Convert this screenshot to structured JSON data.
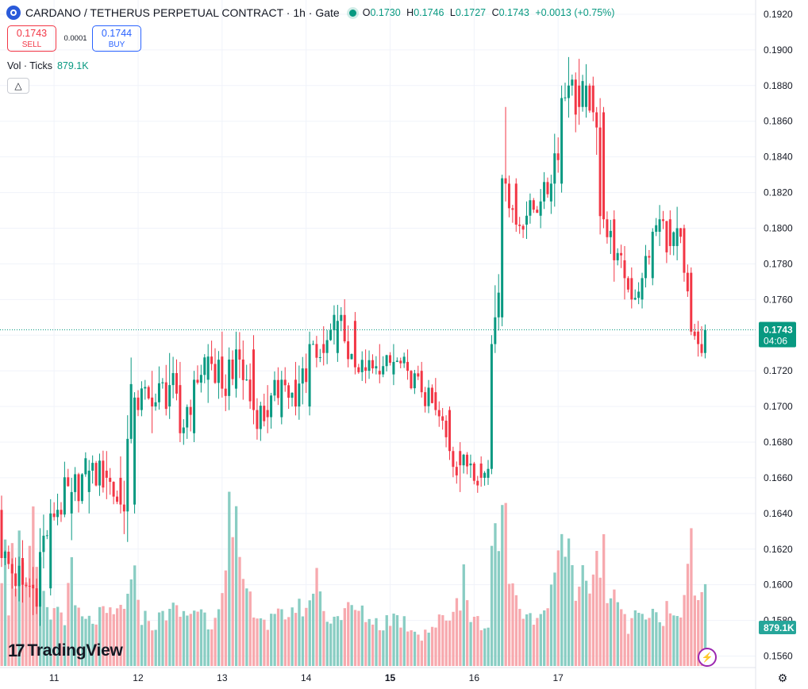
{
  "header": {
    "symbol": "CARDANO / TETHERUS PERPETUAL CONTRACT · 1h · Gate",
    "o_label": "O",
    "o": "0.1730",
    "h_label": "H",
    "h": "0.1746",
    "l_label": "L",
    "l": "0.1727",
    "c_label": "C",
    "c": "0.1743",
    "change": "+0.0013 (+0.75%)"
  },
  "trade": {
    "sell_price": "0.1743",
    "sell_label": "SELL",
    "spread": "0.0001",
    "buy_price": "0.1744",
    "buy_label": "BUY"
  },
  "volume_legend": {
    "label": "Vol · Ticks",
    "value": "879.1K"
  },
  "branding": {
    "text": "TradingView",
    "mark": "17"
  },
  "colors": {
    "up": "#089981",
    "down": "#f23645",
    "vol_up": "#89cdc3",
    "vol_down": "#f7a9ae",
    "grid": "#f0f3fa"
  },
  "chart_data": {
    "type": "candlestick",
    "interval": "1h",
    "price_axis": {
      "min": 0.1554,
      "max": 0.1928,
      "ticks": [
        "0.1920",
        "0.1900",
        "0.1880",
        "0.1860",
        "0.1840",
        "0.1820",
        "0.1800",
        "0.1780",
        "0.1760",
        "0.1740",
        "0.1720",
        "0.1700",
        "0.1680",
        "0.1660",
        "0.1640",
        "0.1620",
        "0.1600",
        "0.1580",
        "0.1560"
      ],
      "grid": true
    },
    "time_axis": {
      "ticks": [
        "11",
        "12",
        "13",
        "14",
        "15",
        "16",
        "17"
      ]
    },
    "last_price": {
      "value": 0.1743,
      "label": "0.1743",
      "countdown": "04:06"
    },
    "last_volume": {
      "label": "879.1K"
    },
    "anchors": [
      [
        0,
        0.1642,
        0.165,
        0.161,
        0.1615
      ],
      [
        6,
        0.1615,
        0.1625,
        0.159,
        0.16
      ],
      [
        9,
        0.16,
        0.161,
        0.1583,
        0.1598
      ],
      [
        14,
        0.1598,
        0.1648,
        0.1594,
        0.164
      ],
      [
        20,
        0.164,
        0.166,
        0.1625,
        0.1652
      ],
      [
        25,
        0.1652,
        0.167,
        0.164,
        0.1664
      ],
      [
        30,
        0.1664,
        0.1675,
        0.1648,
        0.166
      ],
      [
        34,
        0.166,
        0.1672,
        0.164,
        0.1645
      ],
      [
        38,
        0.1645,
        0.1708,
        0.164,
        0.1705
      ],
      [
        43,
        0.1705,
        0.172,
        0.1685,
        0.17
      ],
      [
        48,
        0.17,
        0.173,
        0.1693,
        0.1712
      ],
      [
        51,
        0.1712,
        0.1725,
        0.168,
        0.1685
      ],
      [
        55,
        0.1685,
        0.172,
        0.168,
        0.1715
      ],
      [
        59,
        0.1715,
        0.1735,
        0.1702,
        0.1728
      ],
      [
        63,
        0.1728,
        0.1742,
        0.1705,
        0.171
      ],
      [
        67,
        0.171,
        0.1742,
        0.1705,
        0.1732
      ],
      [
        72,
        0.1732,
        0.174,
        0.169,
        0.1698
      ],
      [
        76,
        0.1698,
        0.1712,
        0.1685,
        0.1694
      ],
      [
        80,
        0.1694,
        0.172,
        0.169,
        0.1715
      ],
      [
        84,
        0.1715,
        0.1725,
        0.1695,
        0.17
      ],
      [
        88,
        0.17,
        0.1742,
        0.1695,
        0.1735
      ],
      [
        92,
        0.1735,
        0.1745,
        0.1723,
        0.173
      ],
      [
        96,
        0.173,
        0.1757,
        0.1725,
        0.1748
      ],
      [
        101,
        0.1748,
        0.1753,
        0.1718,
        0.1722
      ],
      [
        104,
        0.1722,
        0.1732,
        0.1713,
        0.172
      ],
      [
        108,
        0.172,
        0.1735,
        0.1713,
        0.1718
      ],
      [
        112,
        0.1718,
        0.1735,
        0.1712,
        0.1725
      ],
      [
        116,
        0.1725,
        0.1732,
        0.1715,
        0.172
      ],
      [
        120,
        0.172,
        0.1725,
        0.1705,
        0.1708
      ],
      [
        124,
        0.1708,
        0.1716,
        0.1695,
        0.1698
      ],
      [
        128,
        0.1698,
        0.17,
        0.167,
        0.1675
      ],
      [
        131,
        0.1675,
        0.168,
        0.1652,
        0.1667
      ],
      [
        134,
        0.1667,
        0.1673,
        0.166,
        0.1668
      ],
      [
        137,
        0.1668,
        0.1672,
        0.1655,
        0.166
      ],
      [
        139,
        0.166,
        0.167,
        0.1656,
        0.1665
      ],
      [
        140,
        0.1665,
        0.174,
        0.1662,
        0.1735
      ],
      [
        141,
        0.1735,
        0.1768,
        0.173,
        0.175
      ],
      [
        143,
        0.175,
        0.183,
        0.1745,
        0.1828
      ],
      [
        144,
        0.1828,
        0.1868,
        0.1815,
        0.1825
      ],
      [
        147,
        0.1825,
        0.1828,
        0.1798,
        0.1802
      ],
      [
        150,
        0.1802,
        0.1815,
        0.1794,
        0.1807
      ],
      [
        154,
        0.1807,
        0.1822,
        0.18,
        0.1815
      ],
      [
        157,
        0.1815,
        0.183,
        0.1808,
        0.1825
      ],
      [
        160,
        0.1825,
        0.188,
        0.182,
        0.1873
      ],
      [
        162,
        0.1873,
        0.1896,
        0.1862,
        0.188
      ],
      [
        165,
        0.188,
        0.1895,
        0.1858,
        0.1868
      ],
      [
        167,
        0.1868,
        0.1892,
        0.1862,
        0.188
      ],
      [
        169,
        0.188,
        0.1885,
        0.186,
        0.1865
      ],
      [
        172,
        0.1865,
        0.1868,
        0.18,
        0.1805
      ],
      [
        175,
        0.1805,
        0.181,
        0.177,
        0.1782
      ],
      [
        178,
        0.1782,
        0.179,
        0.176,
        0.1772
      ],
      [
        180,
        0.1772,
        0.1778,
        0.1755,
        0.176
      ],
      [
        183,
        0.176,
        0.1775,
        0.1755,
        0.1772
      ],
      [
        186,
        0.1772,
        0.18,
        0.1768,
        0.1798
      ],
      [
        188,
        0.1798,
        0.1813,
        0.179,
        0.1805
      ],
      [
        191,
        0.1805,
        0.181,
        0.1785,
        0.179
      ],
      [
        193,
        0.179,
        0.1812,
        0.1782,
        0.18
      ],
      [
        195,
        0.18,
        0.1802,
        0.177,
        0.1775
      ],
      [
        197,
        0.1775,
        0.1778,
        0.174,
        0.1742
      ],
      [
        199,
        0.1742,
        0.1748,
        0.1728,
        0.1735
      ],
      [
        200,
        0.1735,
        0.1745,
        0.1728,
        0.173
      ],
      [
        201,
        0.173,
        0.1746,
        0.1727,
        0.1743
      ]
    ],
    "volume_anchors": [
      [
        0,
        0.55
      ],
      [
        1,
        0.8
      ],
      [
        2,
        0.35
      ],
      [
        3,
        0.7
      ],
      [
        4,
        0.5
      ],
      [
        5,
        0.85
      ],
      [
        6,
        0.6
      ],
      [
        7,
        0.45
      ],
      [
        8,
        0.7
      ],
      [
        9,
        0.9
      ],
      [
        10,
        0.55
      ],
      [
        11,
        0.65
      ],
      [
        12,
        0.4
      ],
      [
        14,
        0.3
      ],
      [
        16,
        0.35
      ],
      [
        18,
        0.3
      ],
      [
        20,
        0.6
      ],
      [
        21,
        0.35
      ],
      [
        24,
        0.25
      ],
      [
        28,
        0.3
      ],
      [
        32,
        0.3
      ],
      [
        36,
        0.4
      ],
      [
        38,
        0.55
      ],
      [
        40,
        0.3
      ],
      [
        44,
        0.25
      ],
      [
        48,
        0.35
      ],
      [
        52,
        0.3
      ],
      [
        56,
        0.35
      ],
      [
        60,
        0.25
      ],
      [
        64,
        0.55
      ],
      [
        65,
        1.0
      ],
      [
        66,
        0.75
      ],
      [
        67,
        0.9
      ],
      [
        68,
        0.6
      ],
      [
        70,
        0.45
      ],
      [
        72,
        0.35
      ],
      [
        76,
        0.25
      ],
      [
        80,
        0.3
      ],
      [
        84,
        0.35
      ],
      [
        88,
        0.35
      ],
      [
        90,
        0.6
      ],
      [
        92,
        0.3
      ],
      [
        96,
        0.3
      ],
      [
        100,
        0.35
      ],
      [
        104,
        0.3
      ],
      [
        108,
        0.25
      ],
      [
        112,
        0.3
      ],
      [
        116,
        0.25
      ],
      [
        120,
        0.2
      ],
      [
        124,
        0.25
      ],
      [
        128,
        0.3
      ],
      [
        130,
        0.4
      ],
      [
        131,
        0.35
      ],
      [
        132,
        0.6
      ],
      [
        134,
        0.3
      ],
      [
        137,
        0.25
      ],
      [
        139,
        0.2
      ],
      [
        140,
        0.75
      ],
      [
        141,
        0.9
      ],
      [
        142,
        0.7
      ],
      [
        143,
        0.95
      ],
      [
        144,
        1.0
      ],
      [
        145,
        0.55
      ],
      [
        146,
        0.45
      ],
      [
        148,
        0.3
      ],
      [
        150,
        0.25
      ],
      [
        154,
        0.3
      ],
      [
        157,
        0.45
      ],
      [
        158,
        0.6
      ],
      [
        159,
        0.65
      ],
      [
        160,
        0.8
      ],
      [
        161,
        0.6
      ],
      [
        162,
        0.75
      ],
      [
        164,
        0.45
      ],
      [
        166,
        0.6
      ],
      [
        168,
        0.45
      ],
      [
        170,
        0.65
      ],
      [
        171,
        0.55
      ],
      [
        172,
        0.75
      ],
      [
        173,
        0.35
      ],
      [
        175,
        0.5
      ],
      [
        177,
        0.3
      ],
      [
        179,
        0.25
      ],
      [
        181,
        0.35
      ],
      [
        183,
        0.3
      ],
      [
        186,
        0.3
      ],
      [
        188,
        0.25
      ],
      [
        190,
        0.35
      ],
      [
        192,
        0.3
      ],
      [
        194,
        0.35
      ],
      [
        196,
        0.6
      ],
      [
        197,
        0.85
      ],
      [
        198,
        0.45
      ],
      [
        200,
        0.4
      ],
      [
        201,
        0.48
      ]
    ]
  }
}
